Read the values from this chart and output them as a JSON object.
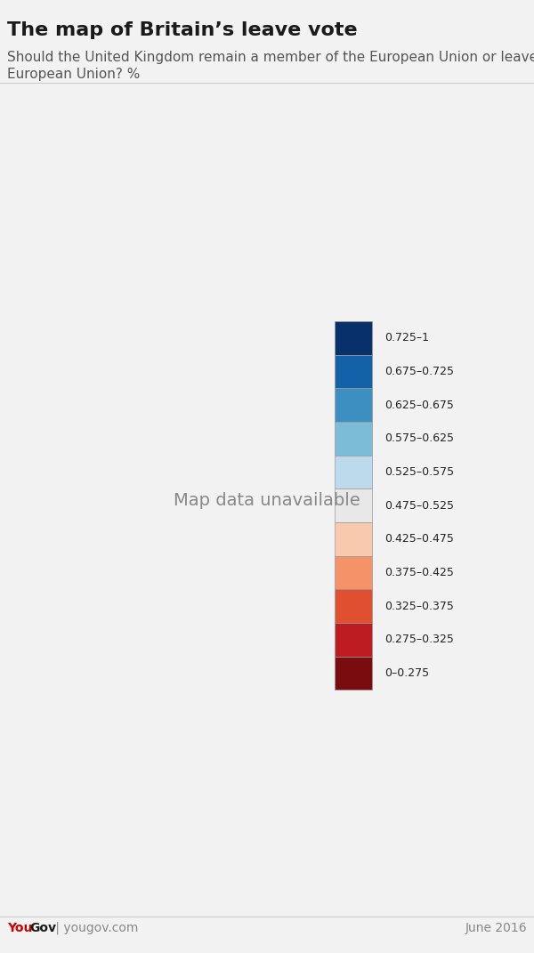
{
  "title": "The map of Britain’s leave vote",
  "subtitle_line1": "Should the United Kingdom remain a member of the European Union or leave the",
  "subtitle_line2": "European Union? %",
  "footer_left_red": "You",
  "footer_left_black": "Gov",
  "footer_left_gray": " | yougov.com",
  "footer_right": "June 2016",
  "background_color": "#f2f2f2",
  "map_background": "#ffffff",
  "legend_labels": [
    "0.725–1",
    "0.675–0.725",
    "0.625–0.675",
    "0.575–0.625",
    "0.525–0.575",
    "0.475–0.525",
    "0.425–0.475",
    "0.375–0.425",
    "0.325–0.375",
    "0.275–0.325",
    "0–0.275"
  ],
  "legend_colors": [
    "#08306b",
    "#1361a9",
    "#3d8fc1",
    "#7dbcd6",
    "#bddaec",
    "#e8e8e8",
    "#f9c9ae",
    "#f4936a",
    "#e05030",
    "#bc1c22",
    "#7a0c10"
  ],
  "boundaries": [
    0.0,
    0.275,
    0.325,
    0.375,
    0.425,
    0.475,
    0.525,
    0.575,
    0.625,
    0.675,
    0.725,
    1.01
  ],
  "title_fontsize": 16,
  "subtitle_fontsize": 11,
  "footer_fontsize": 10,
  "legend_fontsize": 9,
  "border_color": "#5a5a5a",
  "border_width": 0.25
}
